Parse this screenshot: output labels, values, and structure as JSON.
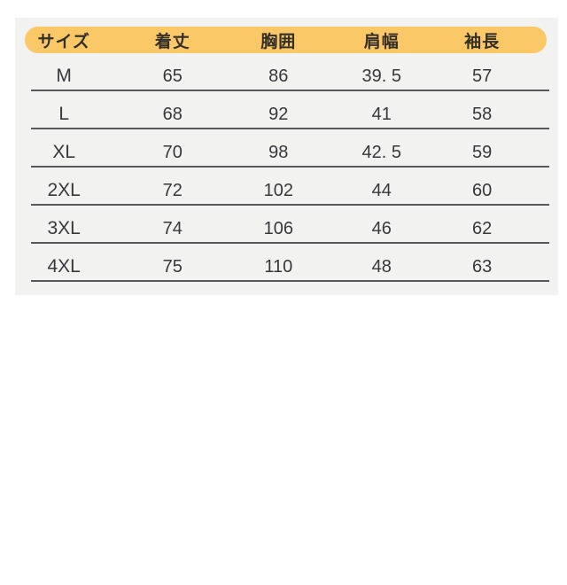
{
  "colors": {
    "page_background": "#ffffff",
    "panel_background": "#f2f2f0",
    "header_background": "#fbc867",
    "divider": "#58585c",
    "text": "#38383c"
  },
  "chart_data": {
    "type": "table",
    "title": "",
    "columns": [
      "サイズ",
      "着丈",
      "胸囲",
      "肩幅",
      "袖長"
    ],
    "rows": [
      [
        "M",
        "65",
        "86",
        "39. 5",
        "57"
      ],
      [
        "L",
        "68",
        "92",
        "41",
        "58"
      ],
      [
        "XL",
        "70",
        "98",
        "42. 5",
        "59"
      ],
      [
        "2XL",
        "72",
        "102",
        "44",
        "60"
      ],
      [
        "3XL",
        "74",
        "106",
        "46",
        "62"
      ],
      [
        "4XL",
        "75",
        "110",
        "48",
        "63"
      ]
    ]
  }
}
